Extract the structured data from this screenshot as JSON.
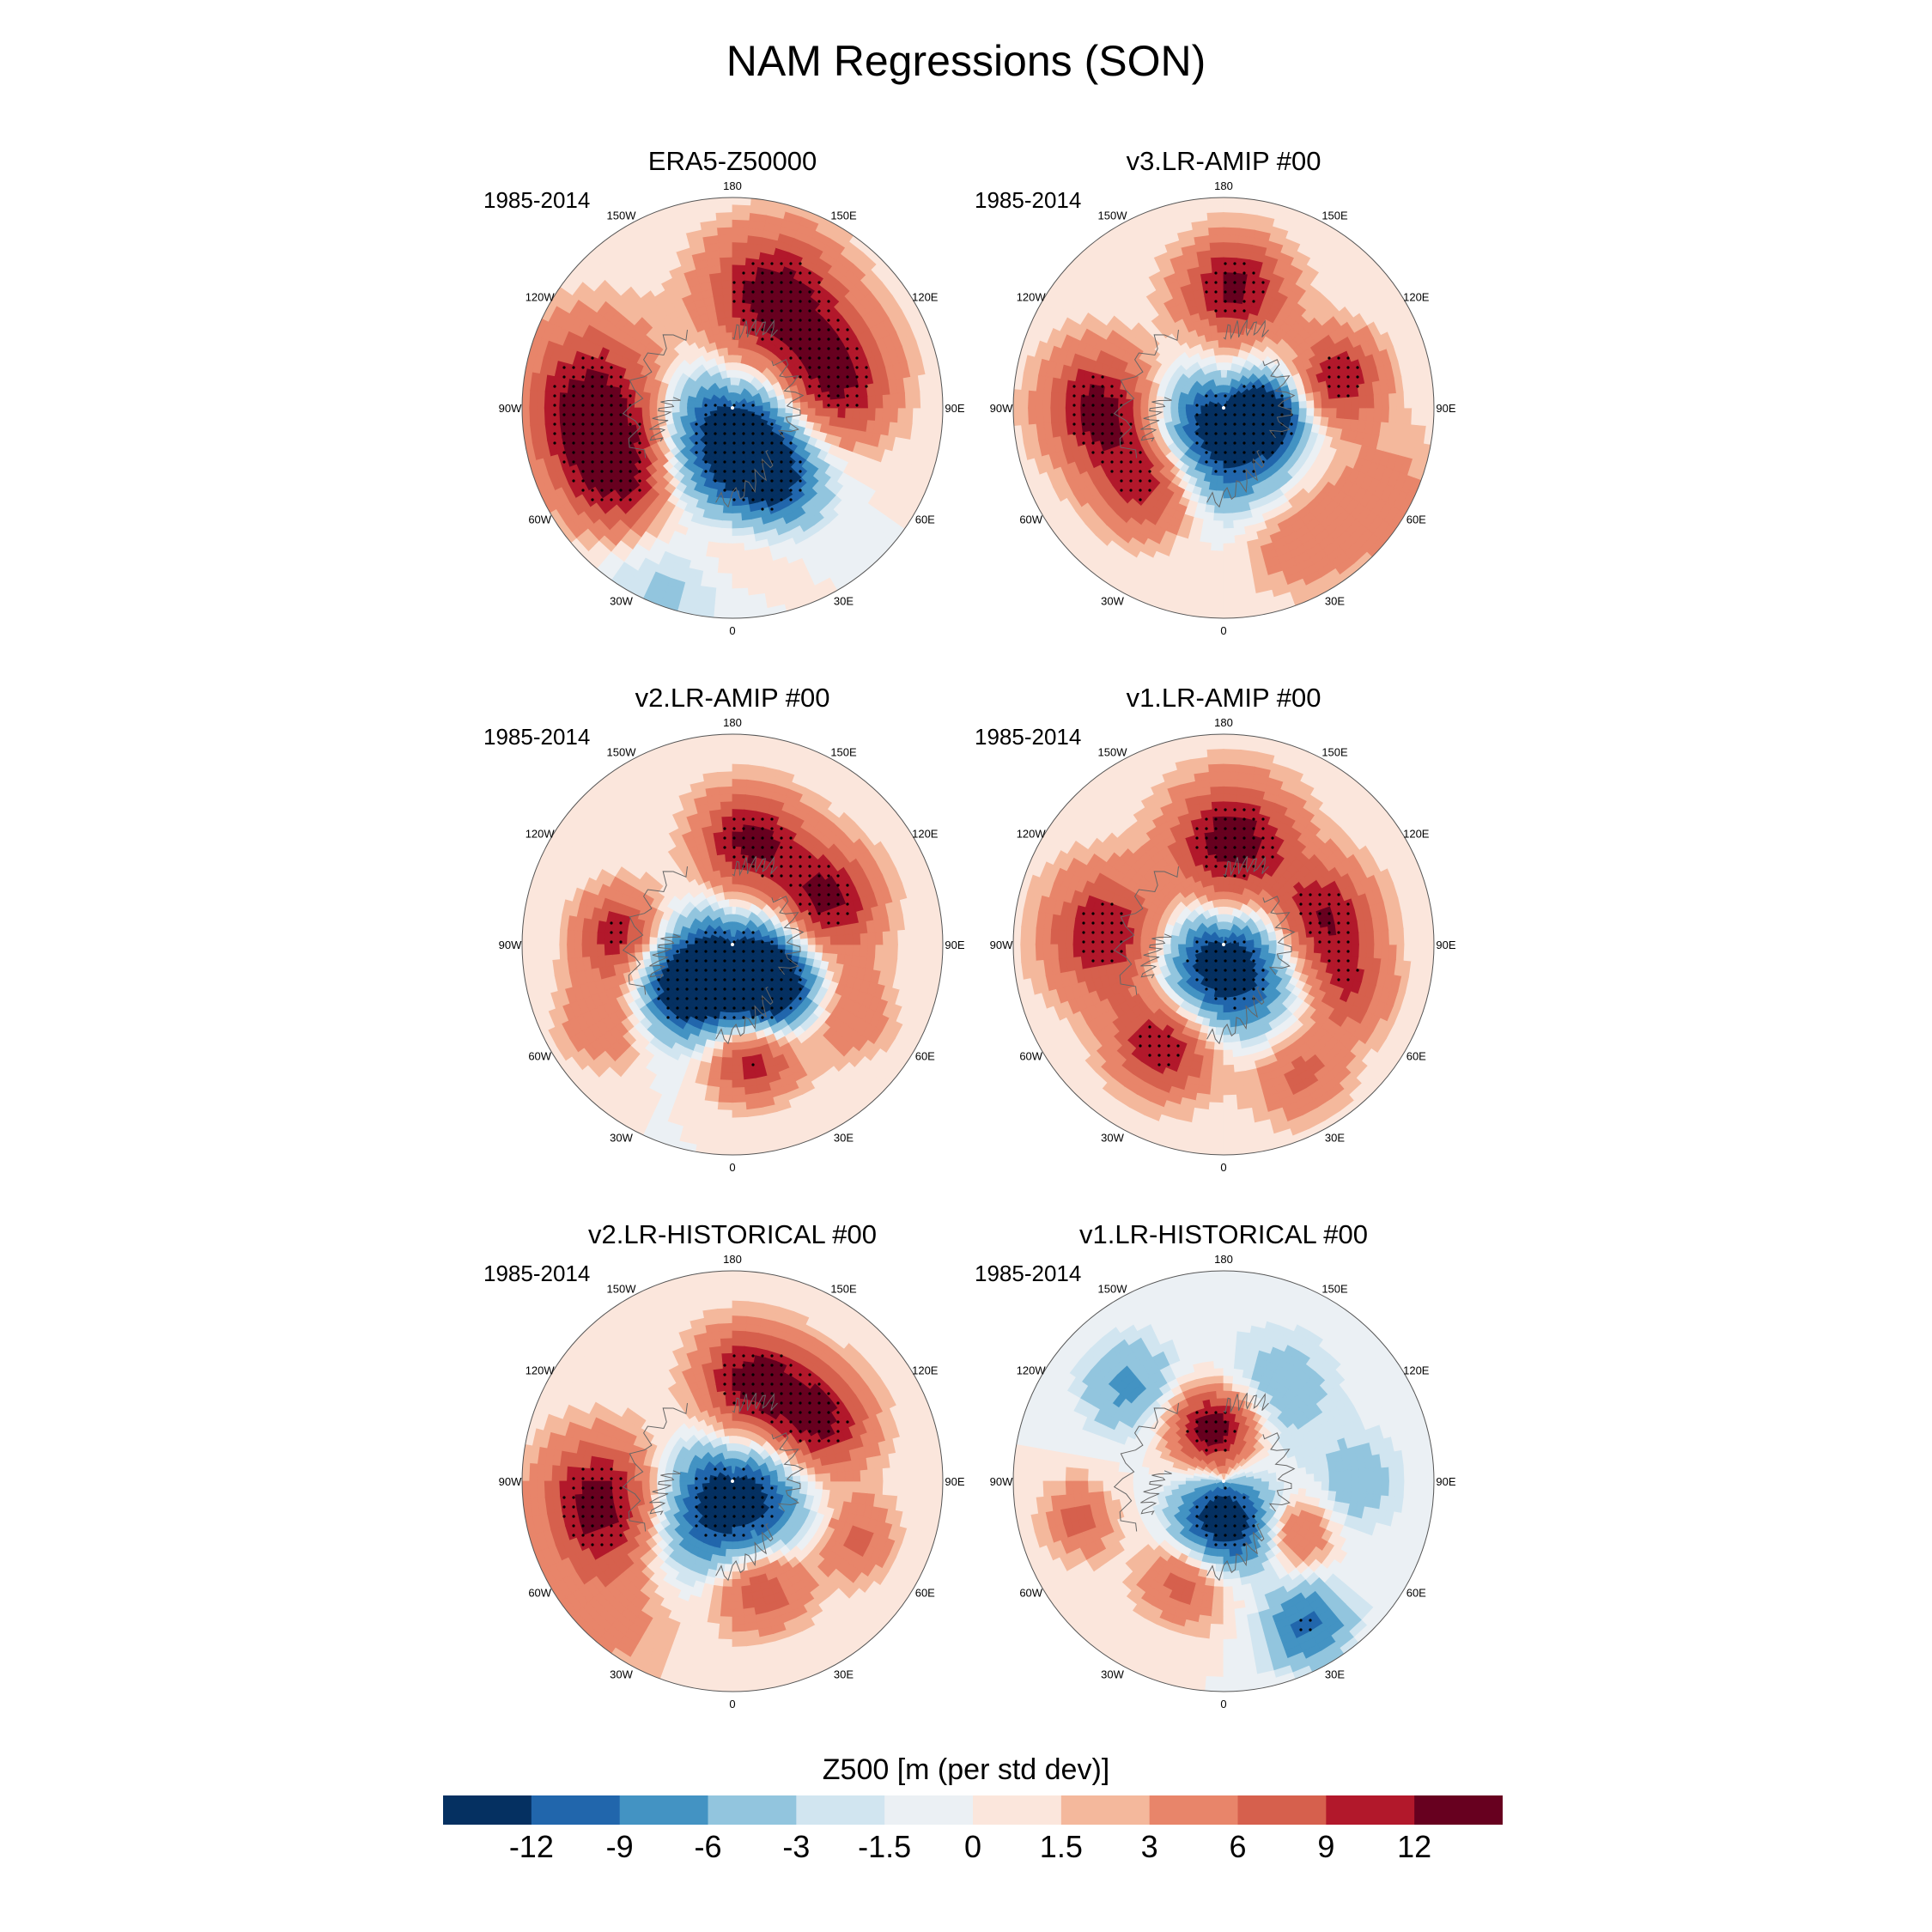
{
  "title": "NAM Regressions (SON)",
  "panels": [
    {
      "title": "ERA5-Z50000",
      "period": "1985-2014",
      "centers": [
        {
          "lon": 160,
          "lat": 50,
          "amp": 14,
          "w": 15
        },
        {
          "lon": 105,
          "lat": 55,
          "amp": 13,
          "w": 14
        },
        {
          "lon": -95,
          "lat": 42,
          "amp": 12,
          "w": 16
        },
        {
          "lon": -60,
          "lat": 47,
          "amp": 13,
          "w": 14
        },
        {
          "lon": 0,
          "lat": 80,
          "amp": -16,
          "w": 18
        },
        {
          "lon": 30,
          "lat": 62,
          "amp": -9,
          "w": 11
        },
        {
          "lon": -20,
          "lat": 28,
          "amp": -4,
          "w": 14
        },
        {
          "lon": 0,
          "lat": 45,
          "amp": 4,
          "w": 12
        }
      ]
    },
    {
      "title": "v3.LR-AMIP  #00",
      "period": "1985-2014",
      "centers": [
        {
          "lon": 175,
          "lat": 50,
          "amp": 13,
          "w": 12
        },
        {
          "lon": 105,
          "lat": 50,
          "amp": 12,
          "w": 10
        },
        {
          "lon": -90,
          "lat": 48,
          "amp": 13,
          "w": 13
        },
        {
          "lon": -45,
          "lat": 55,
          "amp": 12,
          "w": 12
        },
        {
          "lon": 0,
          "lat": 82,
          "amp": -16,
          "w": 17
        },
        {
          "lon": 80,
          "lat": 75,
          "amp": -12,
          "w": 8
        },
        {
          "lon": 30,
          "lat": 40,
          "amp": 5,
          "w": 12
        },
        {
          "lon": 60,
          "lat": 30,
          "amp": 4,
          "w": 15
        }
      ]
    },
    {
      "title": "v2.LR-AMIP  #00",
      "period": "1985-2014",
      "centers": [
        {
          "lon": 170,
          "lat": 55,
          "amp": 13,
          "w": 12
        },
        {
          "lon": 115,
          "lat": 55,
          "amp": 13,
          "w": 12
        },
        {
          "lon": -95,
          "lat": 52,
          "amp": 11,
          "w": 10
        },
        {
          "lon": 10,
          "lat": 52,
          "amp": 13,
          "w": 10
        },
        {
          "lon": 0,
          "lat": 82,
          "amp": -16,
          "w": 17
        },
        {
          "lon": -50,
          "lat": 68,
          "amp": -12,
          "w": 10
        },
        {
          "lon": 45,
          "lat": 70,
          "amp": -12,
          "w": 10
        },
        {
          "lon": 60,
          "lat": 45,
          "amp": 6,
          "w": 10
        },
        {
          "lon": -60,
          "lat": 40,
          "amp": 6,
          "w": 10
        }
      ]
    },
    {
      "title": "v1.LR-AMIP  #00",
      "period": "1985-2014",
      "centers": [
        {
          "lon": 175,
          "lat": 55,
          "amp": 14,
          "w": 14
        },
        {
          "lon": 105,
          "lat": 55,
          "amp": 12,
          "w": 12
        },
        {
          "lon": -95,
          "lat": 50,
          "amp": 12,
          "w": 14
        },
        {
          "lon": -30,
          "lat": 52,
          "amp": 13,
          "w": 12
        },
        {
          "lon": 0,
          "lat": 82,
          "amp": -16,
          "w": 16
        },
        {
          "lon": 70,
          "lat": 45,
          "amp": 8,
          "w": 10
        },
        {
          "lon": 30,
          "lat": 40,
          "amp": 7,
          "w": 10
        }
      ]
    },
    {
      "title": "v2.LR-HISTORICAL  #00",
      "period": "1985-2014",
      "centers": [
        {
          "lon": 170,
          "lat": 55,
          "amp": 13,
          "w": 12
        },
        {
          "lon": 125,
          "lat": 55,
          "amp": 13,
          "w": 12
        },
        {
          "lon": -80,
          "lat": 45,
          "amp": 14,
          "w": 14
        },
        {
          "lon": 15,
          "lat": 55,
          "amp": 12,
          "w": 11
        },
        {
          "lon": 0,
          "lat": 82,
          "amp": -16,
          "w": 18
        },
        {
          "lon": 65,
          "lat": 45,
          "amp": 7,
          "w": 9
        },
        {
          "lon": -40,
          "lat": 30,
          "amp": 4,
          "w": 14
        }
      ]
    },
    {
      "title": "v1.LR-HISTORICAL  #00",
      "period": "1985-2014",
      "centers": [
        {
          "lon": -170,
          "lat": 72,
          "amp": 15,
          "w": 10
        },
        {
          "lon": 0,
          "lat": 76,
          "amp": -16,
          "w": 12
        },
        {
          "lon": -135,
          "lat": 45,
          "amp": -7,
          "w": 10
        },
        {
          "lon": 150,
          "lat": 55,
          "amp": -5,
          "w": 14
        },
        {
          "lon": 90,
          "lat": 45,
          "amp": -5,
          "w": 10
        },
        {
          "lon": 30,
          "lat": 35,
          "amp": -10,
          "w": 9
        },
        {
          "lon": -20,
          "lat": 55,
          "amp": 9,
          "w": 10
        },
        {
          "lon": 55,
          "lat": 60,
          "amp": 7,
          "w": 8
        },
        {
          "lon": -75,
          "lat": 40,
          "amp": 7,
          "w": 8
        }
      ]
    }
  ],
  "lon_labels": [
    "180",
    "150E",
    "120E",
    "90E",
    "60E",
    "30E",
    "0",
    "30W",
    "60W",
    "90W",
    "120W",
    "150W"
  ],
  "colorbar": {
    "title": "Z500 [m (per std dev)]",
    "ticks": [
      "-12",
      "-9",
      "-6",
      "-3",
      "-1.5",
      "0",
      "1.5",
      "3",
      "6",
      "9",
      "12"
    ],
    "levels": [
      -12,
      -9,
      -6,
      -3,
      -1.5,
      0,
      1.5,
      3,
      6,
      9,
      12
    ],
    "colors": [
      "#053061",
      "#2166ac",
      "#4393c3",
      "#92c5de",
      "#d1e5f0",
      "#ebf0f4",
      "#fbe6dc",
      "#f4b89c",
      "#e8856a",
      "#d6604d",
      "#b2182b",
      "#67001f"
    ],
    "dot_color": "#000000",
    "coast_color": "#666666"
  }
}
